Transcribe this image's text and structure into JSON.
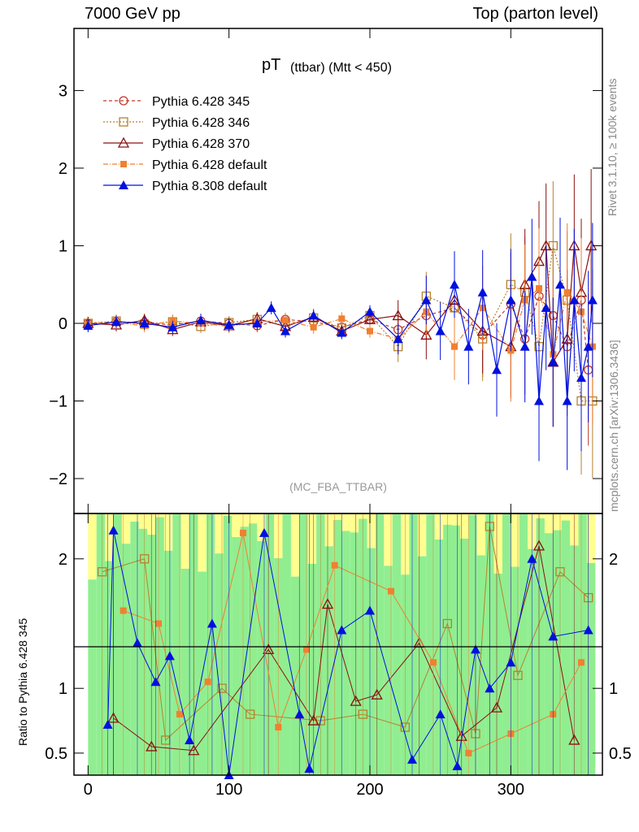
{
  "header": {
    "left": "7000 GeV pp",
    "right": "Top (parton level)"
  },
  "side_labels": {
    "rivet": "Rivet 3.1.10, ≥ 100k events",
    "mcplots": "mcplots.cern.ch [arXiv:1306.3436]"
  },
  "chart_data": [
    {
      "type": "line",
      "title": "pT (ttbar) (Mtt < 450)",
      "title_main": "pT",
      "title_sub": "(ttbar) (Mtt < 450)",
      "watermark": "(MC_FBA_TTBAR)",
      "xlim": [
        -10,
        365
      ],
      "ylim": [
        -2.45,
        3.8
      ],
      "xticks": [
        0,
        100,
        200,
        300
      ],
      "yticks": [
        -2,
        -1,
        0,
        1,
        2,
        3
      ],
      "ytick_labels": [
        "−2",
        "−1",
        "0",
        "1",
        "2",
        "3"
      ],
      "legend_position": "top-left",
      "series": [
        {
          "name": "Pythia 6.428 345",
          "color": "#c0392b",
          "marker": "open-circle",
          "dash": "4,3",
          "points": [
            [
              0,
              0
            ],
            [
              20,
              0.02
            ],
            [
              40,
              0.01
            ],
            [
              60,
              -0.02
            ],
            [
              80,
              0.03
            ],
            [
              100,
              0.0
            ],
            [
              120,
              -0.03
            ],
            [
              140,
              0.05
            ],
            [
              160,
              0.02
            ],
            [
              180,
              -0.05
            ],
            [
              200,
              0.05
            ],
            [
              220,
              -0.08
            ],
            [
              240,
              0.1
            ],
            [
              260,
              0.2
            ],
            [
              280,
              -0.15
            ],
            [
              300,
              0.25
            ],
            [
              310,
              -0.2
            ],
            [
              320,
              0.35
            ],
            [
              330,
              0.1
            ],
            [
              340,
              -0.3
            ],
            [
              350,
              0.3
            ],
            [
              355,
              -0.6
            ]
          ]
        },
        {
          "name": "Pythia 6.428 346",
          "color": "#b5832c",
          "marker": "open-square",
          "dash": "2,2",
          "points": [
            [
              0,
              0
            ],
            [
              20,
              0.03
            ],
            [
              40,
              -0.01
            ],
            [
              60,
              0.02
            ],
            [
              80,
              -0.04
            ],
            [
              100,
              0.01
            ],
            [
              120,
              0.05
            ],
            [
              140,
              -0.03
            ],
            [
              160,
              0.07
            ],
            [
              180,
              -0.06
            ],
            [
              200,
              0.1
            ],
            [
              220,
              -0.3
            ],
            [
              240,
              0.35
            ],
            [
              260,
              0.2
            ],
            [
              280,
              -0.2
            ],
            [
              300,
              0.5
            ],
            [
              310,
              0.4
            ],
            [
              320,
              -0.3
            ],
            [
              330,
              1.0
            ],
            [
              340,
              0.3
            ],
            [
              350,
              -1.0
            ],
            [
              358,
              -1.0
            ]
          ]
        },
        {
          "name": "Pythia 6.428 370",
          "color": "#8b1010",
          "marker": "open-triangle",
          "dash": "",
          "points": [
            [
              0,
              0
            ],
            [
              20,
              -0.02
            ],
            [
              40,
              0.04
            ],
            [
              60,
              -0.08
            ],
            [
              80,
              0.02
            ],
            [
              100,
              -0.03
            ],
            [
              120,
              0.06
            ],
            [
              140,
              -0.04
            ],
            [
              160,
              0.08
            ],
            [
              180,
              -0.1
            ],
            [
              200,
              0.05
            ],
            [
              220,
              0.1
            ],
            [
              240,
              -0.15
            ],
            [
              260,
              0.3
            ],
            [
              280,
              -0.1
            ],
            [
              300,
              -0.3
            ],
            [
              310,
              0.5
            ],
            [
              320,
              0.8
            ],
            [
              325,
              1.0
            ],
            [
              330,
              -0.5
            ],
            [
              340,
              -0.2
            ],
            [
              345,
              1.0
            ],
            [
              350,
              0.4
            ],
            [
              357,
              1.0
            ]
          ]
        },
        {
          "name": "Pythia 6.428 default",
          "color": "#f08030",
          "marker": "filled-square",
          "dash": "6,2,1,2",
          "points": [
            [
              0,
              -0.02
            ],
            [
              20,
              0.01
            ],
            [
              40,
              -0.03
            ],
            [
              60,
              0.03
            ],
            [
              80,
              0.0
            ],
            [
              100,
              -0.04
            ],
            [
              120,
              0.02
            ],
            [
              140,
              0.04
            ],
            [
              160,
              -0.05
            ],
            [
              180,
              0.06
            ],
            [
              200,
              -0.1
            ],
            [
              220,
              -0.2
            ],
            [
              240,
              0.15
            ],
            [
              260,
              -0.3
            ],
            [
              280,
              0.2
            ],
            [
              300,
              -0.35
            ],
            [
              310,
              0.3
            ],
            [
              320,
              0.45
            ],
            [
              330,
              -0.4
            ],
            [
              340,
              0.4
            ],
            [
              350,
              0.15
            ],
            [
              358,
              -0.3
            ]
          ]
        },
        {
          "name": "Pythia 8.308 default",
          "color": "#0010e0",
          "marker": "filled-triangle",
          "dash": "",
          "points": [
            [
              0,
              -0.03
            ],
            [
              20,
              0.02
            ],
            [
              40,
              0.0
            ],
            [
              60,
              -0.05
            ],
            [
              80,
              0.04
            ],
            [
              100,
              -0.02
            ],
            [
              120,
              0.0
            ],
            [
              130,
              0.2
            ],
            [
              140,
              -0.1
            ],
            [
              160,
              0.1
            ],
            [
              180,
              -0.12
            ],
            [
              200,
              0.15
            ],
            [
              220,
              -0.2
            ],
            [
              240,
              0.3
            ],
            [
              250,
              -0.1
            ],
            [
              260,
              0.5
            ],
            [
              270,
              -0.3
            ],
            [
              280,
              0.4
            ],
            [
              290,
              -0.6
            ],
            [
              300,
              0.3
            ],
            [
              310,
              -0.3
            ],
            [
              315,
              0.6
            ],
            [
              320,
              -1.0
            ],
            [
              325,
              0.2
            ],
            [
              330,
              -0.5
            ],
            [
              335,
              0.5
            ],
            [
              340,
              -1.0
            ],
            [
              345,
              0.3
            ],
            [
              350,
              -0.7
            ],
            [
              355,
              -0.3
            ],
            [
              358,
              0.3
            ]
          ]
        }
      ]
    },
    {
      "type": "line",
      "ylabel": "Ratio to Pythia 6.428 345",
      "xlim": [
        -10,
        365
      ],
      "ylim": [
        0.33,
        2.35
      ],
      "xticks": [
        0,
        100,
        200,
        300
      ],
      "yticks": [
        0.5,
        1,
        2
      ],
      "ytick_labels": [
        "0.5",
        "1",
        "2"
      ],
      "band_colors": {
        "inner": "#90ee90",
        "outer": "#ffff90"
      },
      "series": [
        {
          "name": "Pythia 6.428 346",
          "color": "#b5832c",
          "marker": "open-square",
          "points": [
            [
              10,
              1.9
            ],
            [
              40,
              2.0
            ],
            [
              55,
              0.6
            ],
            [
              95,
              1.0
            ],
            [
              115,
              0.8
            ],
            [
              165,
              0.75
            ],
            [
              195,
              0.8
            ],
            [
              225,
              0.7
            ],
            [
              255,
              1.5
            ],
            [
              275,
              0.65
            ],
            [
              285,
              2.25
            ],
            [
              305,
              1.1
            ],
            [
              335,
              1.9
            ],
            [
              355,
              1.7
            ]
          ]
        },
        {
          "name": "Pythia 6.428 370",
          "color": "#8b1010",
          "marker": "open-triangle",
          "points": [
            [
              18,
              0.77
            ],
            [
              45,
              0.55
            ],
            [
              75,
              0.52
            ],
            [
              128,
              1.3
            ],
            [
              160,
              0.75
            ],
            [
              170,
              1.65
            ],
            [
              190,
              0.9
            ],
            [
              205,
              0.95
            ],
            [
              235,
              1.35
            ],
            [
              265,
              0.63
            ],
            [
              290,
              0.85
            ],
            [
              320,
              2.1
            ],
            [
              345,
              0.6
            ]
          ]
        },
        {
          "name": "Pythia 6.428 default",
          "color": "#f08030",
          "marker": "filled-square",
          "points": [
            [
              25,
              1.6
            ],
            [
              50,
              1.5
            ],
            [
              65,
              0.8
            ],
            [
              85,
              1.05
            ],
            [
              110,
              2.2
            ],
            [
              135,
              0.7
            ],
            [
              155,
              1.3
            ],
            [
              175,
              1.95
            ],
            [
              215,
              1.75
            ],
            [
              245,
              1.2
            ],
            [
              270,
              0.5
            ],
            [
              300,
              0.65
            ],
            [
              330,
              0.8
            ],
            [
              350,
              1.2
            ]
          ]
        },
        {
          "name": "Pythia 8.308 default",
          "color": "#0010e0",
          "marker": "filled-triangle",
          "points": [
            [
              14,
              0.72
            ],
            [
              18,
              2.22
            ],
            [
              35,
              1.35
            ],
            [
              48,
              1.05
            ],
            [
              58,
              1.25
            ],
            [
              72,
              0.6
            ],
            [
              88,
              1.5
            ],
            [
              100,
              0.3
            ],
            [
              125,
              2.2
            ],
            [
              150,
              0.8
            ],
            [
              157,
              0.38
            ],
            [
              180,
              1.45
            ],
            [
              200,
              1.6
            ],
            [
              230,
              0.45
            ],
            [
              250,
              0.8
            ],
            [
              262,
              0.4
            ],
            [
              275,
              1.3
            ],
            [
              285,
              1.0
            ],
            [
              300,
              1.2
            ],
            [
              315,
              2.0
            ],
            [
              330,
              1.4
            ],
            [
              355,
              1.45
            ]
          ]
        }
      ]
    }
  ]
}
